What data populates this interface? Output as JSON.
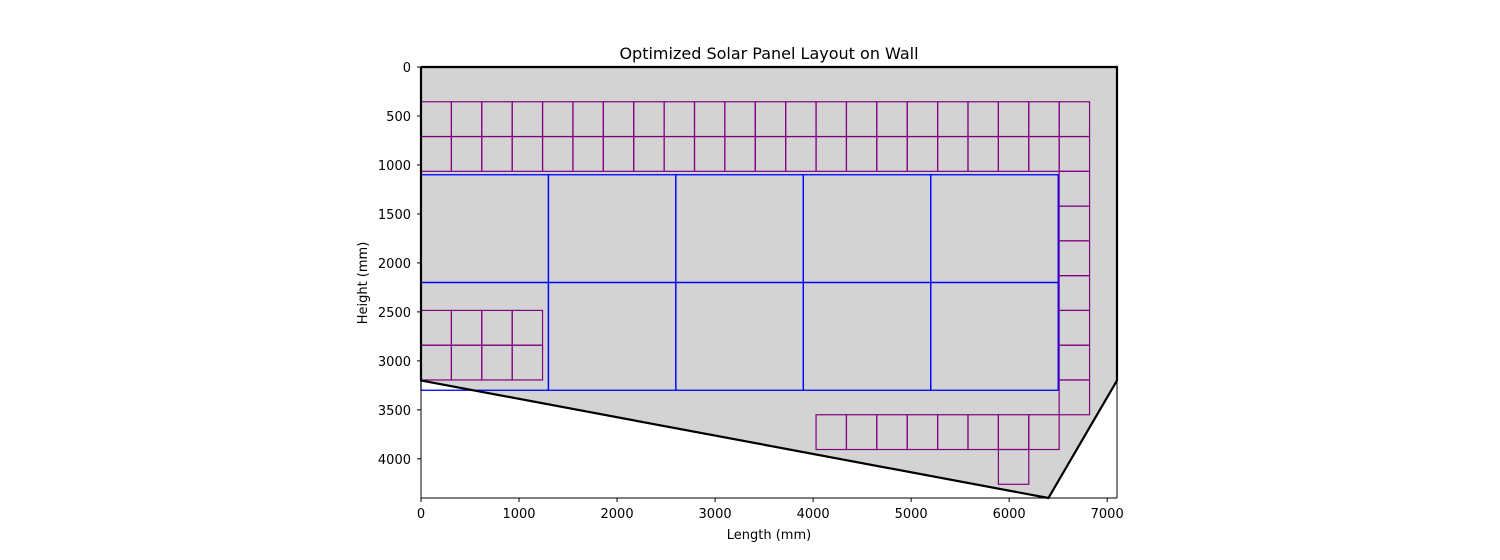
{
  "chart_data": {
    "type": "layout",
    "title": "Optimized Solar Panel Layout on Wall",
    "xlabel": "Length (mm)",
    "ylabel": "Height (mm)",
    "xlim": [
      0,
      7100
    ],
    "ylim": [
      4400,
      0
    ],
    "y_inverted": true,
    "grid": false,
    "xticks": [
      0,
      1000,
      2000,
      3000,
      4000,
      5000,
      6000,
      7000
    ],
    "yticks": [
      0,
      500,
      1000,
      1500,
      2000,
      2500,
      3000,
      3500,
      4000
    ],
    "colors": {
      "wall_fill": "#d3d3d3",
      "wall_edge": "#000000",
      "large_panel": "#0000ff",
      "small_panel": "#800080"
    },
    "wall_polygon": [
      [
        0,
        0
      ],
      [
        7100,
        0
      ],
      [
        7100,
        3200
      ],
      [
        6400,
        4400
      ],
      [
        0,
        3200
      ]
    ],
    "large_panel_size": [
      1300,
      1100
    ],
    "large_panels": [
      [
        0,
        1100
      ],
      [
        1300,
        1100
      ],
      [
        2600,
        1100
      ],
      [
        3900,
        1100
      ],
      [
        5200,
        1100
      ],
      [
        0,
        2200
      ],
      [
        1300,
        2200
      ],
      [
        2600,
        2200
      ],
      [
        3900,
        2200
      ],
      [
        5200,
        2200
      ]
    ],
    "small_panel_size": [
      310,
      355
    ],
    "small_panel_groups": [
      {
        "x0": 0,
        "y0": 355,
        "cols": 22,
        "rows": 2
      },
      {
        "x0": 6510,
        "y0": 1065,
        "cols": 1,
        "rows": 7
      },
      {
        "x0": 0,
        "y0": 2485,
        "cols": 4,
        "rows": 2
      },
      {
        "x0": 4030,
        "y0": 3550,
        "cols": 8,
        "rows": 1
      },
      {
        "x0": 5890,
        "y0": 3905,
        "cols": 1,
        "rows": 1
      }
    ]
  }
}
